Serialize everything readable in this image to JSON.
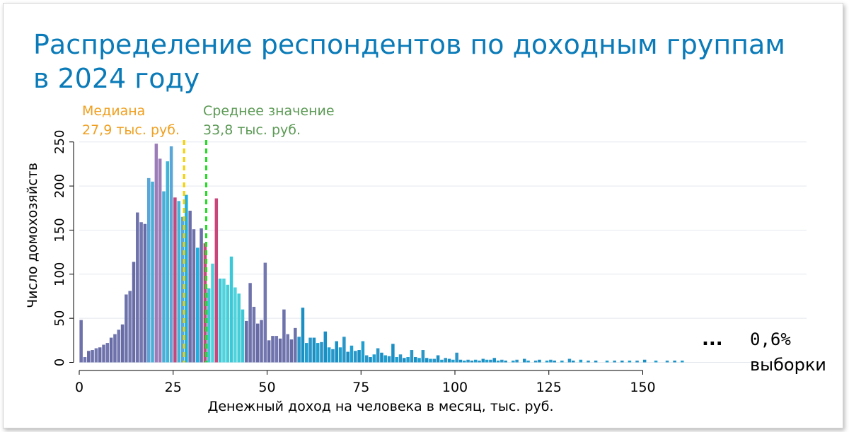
{
  "slide": {
    "title_line1": "Распределение респондентов по доходным группам",
    "title_line2": "в 2024 году",
    "note_dots": "...",
    "note_value": "0,6%",
    "note_text": "выборки"
  },
  "colors": {
    "title": "#0a7bb8",
    "median": "#f0a020",
    "median_line": "#f5d000",
    "mean": "#5c9a55",
    "mean_line": "#22dd22"
  },
  "chart_data": {
    "type": "bar",
    "xlabel": "Денежный доход на человека в месяц, тыс. руб.",
    "ylabel": "Число домохозяйств",
    "xlim": [
      0,
      161
    ],
    "ylim": [
      0,
      260
    ],
    "xticks": [
      "0",
      "25",
      "50",
      "75",
      "100",
      "125",
      "150"
    ],
    "yticks": [
      "0",
      "50",
      "100",
      "150",
      "200",
      "250"
    ],
    "grid": true,
    "bin_width": 1,
    "annotations": {
      "median": {
        "label": "Медиана",
        "value_text": "27,9 тыс. руб.",
        "x": 27.9
      },
      "mean": {
        "label": "Среднее значение",
        "value_text": "33,8 тыс. руб.",
        "x": 33.8
      }
    },
    "bins": [
      {
        "x": 0,
        "y": 48
      },
      {
        "x": 1,
        "y": 6
      },
      {
        "x": 2,
        "y": 13
      },
      {
        "x": 3,
        "y": 14
      },
      {
        "x": 4,
        "y": 16
      },
      {
        "x": 5,
        "y": 17
      },
      {
        "x": 6,
        "y": 20
      },
      {
        "x": 7,
        "y": 22
      },
      {
        "x": 8,
        "y": 28
      },
      {
        "x": 9,
        "y": 32
      },
      {
        "x": 10,
        "y": 37
      },
      {
        "x": 11,
        "y": 43
      },
      {
        "x": 12,
        "y": 77
      },
      {
        "x": 13,
        "y": 81
      },
      {
        "x": 14,
        "y": 114
      },
      {
        "x": 15,
        "y": 170
      },
      {
        "x": 16,
        "y": 159
      },
      {
        "x": 17,
        "y": 157
      },
      {
        "x": 18,
        "y": 209
      },
      {
        "x": 19,
        "y": 205
      },
      {
        "x": 20,
        "y": 248
      },
      {
        "x": 21,
        "y": 231
      },
      {
        "x": 22,
        "y": 194
      },
      {
        "x": 23,
        "y": 228
      },
      {
        "x": 24,
        "y": 245
      },
      {
        "x": 25,
        "y": 187
      },
      {
        "x": 26,
        "y": 183
      },
      {
        "x": 27,
        "y": 165
      },
      {
        "x": 28,
        "y": 190
      },
      {
        "x": 29,
        "y": 172
      },
      {
        "x": 30,
        "y": 151
      },
      {
        "x": 31,
        "y": 130
      },
      {
        "x": 32,
        "y": 152
      },
      {
        "x": 33,
        "y": 135
      },
      {
        "x": 34,
        "y": 84
      },
      {
        "x": 35,
        "y": 112
      },
      {
        "x": 36,
        "y": 186
      },
      {
        "x": 37,
        "y": 95
      },
      {
        "x": 38,
        "y": 95
      },
      {
        "x": 39,
        "y": 88
      },
      {
        "x": 40,
        "y": 120
      },
      {
        "x": 41,
        "y": 85
      },
      {
        "x": 42,
        "y": 78
      },
      {
        "x": 43,
        "y": 60
      },
      {
        "x": 44,
        "y": 47
      },
      {
        "x": 45,
        "y": 90
      },
      {
        "x": 46,
        "y": 63
      },
      {
        "x": 47,
        "y": 44
      },
      {
        "x": 48,
        "y": 48
      },
      {
        "x": 49,
        "y": 113
      },
      {
        "x": 50,
        "y": 25
      },
      {
        "x": 51,
        "y": 30
      },
      {
        "x": 52,
        "y": 30
      },
      {
        "x": 53,
        "y": 27
      },
      {
        "x": 54,
        "y": 60
      },
      {
        "x": 55,
        "y": 32
      },
      {
        "x": 56,
        "y": 26
      },
      {
        "x": 57,
        "y": 39
      },
      {
        "x": 58,
        "y": 29
      },
      {
        "x": 59,
        "y": 62
      },
      {
        "x": 60,
        "y": 22
      },
      {
        "x": 61,
        "y": 28
      },
      {
        "x": 62,
        "y": 28
      },
      {
        "x": 63,
        "y": 22
      },
      {
        "x": 64,
        "y": 23
      },
      {
        "x": 65,
        "y": 35
      },
      {
        "x": 66,
        "y": 17
      },
      {
        "x": 67,
        "y": 15
      },
      {
        "x": 68,
        "y": 24
      },
      {
        "x": 69,
        "y": 17
      },
      {
        "x": 70,
        "y": 29
      },
      {
        "x": 71,
        "y": 12
      },
      {
        "x": 72,
        "y": 19
      },
      {
        "x": 73,
        "y": 13
      },
      {
        "x": 74,
        "y": 14
      },
      {
        "x": 75,
        "y": 24
      },
      {
        "x": 76,
        "y": 8
      },
      {
        "x": 77,
        "y": 6
      },
      {
        "x": 78,
        "y": 9
      },
      {
        "x": 79,
        "y": 16
      },
      {
        "x": 80,
        "y": 11
      },
      {
        "x": 81,
        "y": 8
      },
      {
        "x": 82,
        "y": 7
      },
      {
        "x": 83,
        "y": 21
      },
      {
        "x": 84,
        "y": 6
      },
      {
        "x": 85,
        "y": 9
      },
      {
        "x": 86,
        "y": 5
      },
      {
        "x": 87,
        "y": 6
      },
      {
        "x": 88,
        "y": 14
      },
      {
        "x": 89,
        "y": 6
      },
      {
        "x": 90,
        "y": 5
      },
      {
        "x": 91,
        "y": 14
      },
      {
        "x": 92,
        "y": 5
      },
      {
        "x": 93,
        "y": 4
      },
      {
        "x": 94,
        "y": 4
      },
      {
        "x": 95,
        "y": 8
      },
      {
        "x": 96,
        "y": 3
      },
      {
        "x": 97,
        "y": 5
      },
      {
        "x": 98,
        "y": 4
      },
      {
        "x": 99,
        "y": 3
      },
      {
        "x": 100,
        "y": 11
      },
      {
        "x": 101,
        "y": 3
      },
      {
        "x": 102,
        "y": 2
      },
      {
        "x": 103,
        "y": 3
      },
      {
        "x": 104,
        "y": 2
      },
      {
        "x": 105,
        "y": 3
      },
      {
        "x": 106,
        "y": 2
      },
      {
        "x": 107,
        "y": 4
      },
      {
        "x": 108,
        "y": 3
      },
      {
        "x": 109,
        "y": 3
      },
      {
        "x": 110,
        "y": 5
      },
      {
        "x": 111,
        "y": 2
      },
      {
        "x": 112,
        "y": 3
      },
      {
        "x": 113,
        "y": 2
      },
      {
        "x": 115,
        "y": 2
      },
      {
        "x": 116,
        "y": 3
      },
      {
        "x": 118,
        "y": 4
      },
      {
        "x": 119,
        "y": 2
      },
      {
        "x": 121,
        "y": 2
      },
      {
        "x": 122,
        "y": 3
      },
      {
        "x": 124,
        "y": 2
      },
      {
        "x": 125,
        "y": 3
      },
      {
        "x": 126,
        "y": 2
      },
      {
        "x": 128,
        "y": 2
      },
      {
        "x": 130,
        "y": 4
      },
      {
        "x": 131,
        "y": 2
      },
      {
        "x": 133,
        "y": 3
      },
      {
        "x": 135,
        "y": 2
      },
      {
        "x": 137,
        "y": 2
      },
      {
        "x": 140,
        "y": 2
      },
      {
        "x": 142,
        "y": 2
      },
      {
        "x": 144,
        "y": 2
      },
      {
        "x": 146,
        "y": 2
      },
      {
        "x": 148,
        "y": 2
      },
      {
        "x": 150,
        "y": 3
      },
      {
        "x": 153,
        "y": 2
      },
      {
        "x": 156,
        "y": 2
      },
      {
        "x": 158,
        "y": 2
      },
      {
        "x": 160,
        "y": 2
      }
    ]
  }
}
